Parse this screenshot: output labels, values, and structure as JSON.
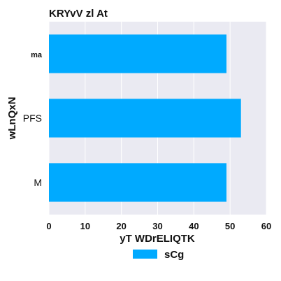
{
  "chart_data": {
    "type": "bar",
    "orientation": "horizontal",
    "title": "KRYvV  zl At",
    "xlabel": "yT WDrELIQTK",
    "ylabel": "wLnQxN",
    "categories": [
      "ma",
      "PFS",
      "M"
    ],
    "series": [
      {
        "name": "sCg",
        "values": [
          49,
          53,
          49
        ]
      }
    ],
    "xlim": [
      0,
      60
    ],
    "xticks": [
      "0",
      "10",
      "20",
      "30",
      "40",
      "50",
      "60"
    ],
    "grid": true,
    "legend": "bottom-center",
    "colors": {
      "bar": "#00aaff",
      "plot_background": "#eaeaf2",
      "grid": "#ffffff"
    }
  }
}
